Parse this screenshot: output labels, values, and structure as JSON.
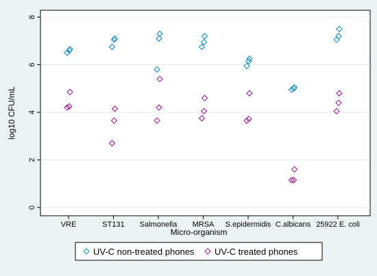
{
  "chart_data": {
    "type": "scatter",
    "title": "",
    "xlabel": "Micro-organism",
    "ylabel": "log10 CFU/mL",
    "ylim": [
      0,
      8
    ],
    "yticks": [
      "0",
      "2",
      "4",
      "6",
      "8"
    ],
    "grid": true,
    "legend_position": "bottom",
    "categories": [
      "VRE",
      "ST131",
      "Salmonella",
      "MRSA",
      "S.epidermidis",
      "C.albicans",
      "25922 E. coli"
    ],
    "series": [
      {
        "name": "UV-C non-treated phones",
        "color": "#1a8fc9",
        "marker": "diamond",
        "points": [
          {
            "category": "VRE",
            "y": 6.5
          },
          {
            "category": "VRE",
            "y": 6.6
          },
          {
            "category": "VRE",
            "y": 6.65
          },
          {
            "category": "ST131",
            "y": 6.75
          },
          {
            "category": "ST131",
            "y": 7.05
          },
          {
            "category": "ST131",
            "y": 7.1
          },
          {
            "category": "Salmonella",
            "y": 5.8
          },
          {
            "category": "Salmonella",
            "y": 7.1
          },
          {
            "category": "Salmonella",
            "y": 7.3
          },
          {
            "category": "MRSA",
            "y": 6.75
          },
          {
            "category": "MRSA",
            "y": 6.95
          },
          {
            "category": "MRSA",
            "y": 7.2
          },
          {
            "category": "S.epidermidis",
            "y": 5.95
          },
          {
            "category": "S.epidermidis",
            "y": 6.15
          },
          {
            "category": "S.epidermidis",
            "y": 6.25
          },
          {
            "category": "C.albicans",
            "y": 4.95
          },
          {
            "category": "C.albicans",
            "y": 5.0
          },
          {
            "category": "C.albicans",
            "y": 5.05
          },
          {
            "category": "25922 E. coli",
            "y": 7.05
          },
          {
            "category": "25922 E. coli",
            "y": 7.2
          },
          {
            "category": "25922 E. coli",
            "y": 7.5
          }
        ]
      },
      {
        "name": "UV-C treated phones",
        "color": "#a0209b",
        "marker": "diamond",
        "points": [
          {
            "category": "VRE",
            "y": 4.2
          },
          {
            "category": "VRE",
            "y": 4.25
          },
          {
            "category": "VRE",
            "y": 4.85
          },
          {
            "category": "ST131",
            "y": 2.7
          },
          {
            "category": "ST131",
            "y": 3.65
          },
          {
            "category": "ST131",
            "y": 4.15
          },
          {
            "category": "Salmonella",
            "y": 3.65
          },
          {
            "category": "Salmonella",
            "y": 4.2
          },
          {
            "category": "Salmonella",
            "y": 5.4
          },
          {
            "category": "MRSA",
            "y": 3.75
          },
          {
            "category": "MRSA",
            "y": 4.05
          },
          {
            "category": "MRSA",
            "y": 4.6
          },
          {
            "category": "S.epidermidis",
            "y": 3.65
          },
          {
            "category": "S.epidermidis",
            "y": 3.72
          },
          {
            "category": "S.epidermidis",
            "y": 4.8
          },
          {
            "category": "C.albicans",
            "y": 1.15
          },
          {
            "category": "C.albicans",
            "y": 1.15
          },
          {
            "category": "C.albicans",
            "y": 1.6
          },
          {
            "category": "25922 E. coli",
            "y": 4.05
          },
          {
            "category": "25922 E. coli",
            "y": 4.4
          },
          {
            "category": "25922 E. coli",
            "y": 4.8
          }
        ]
      }
    ]
  }
}
